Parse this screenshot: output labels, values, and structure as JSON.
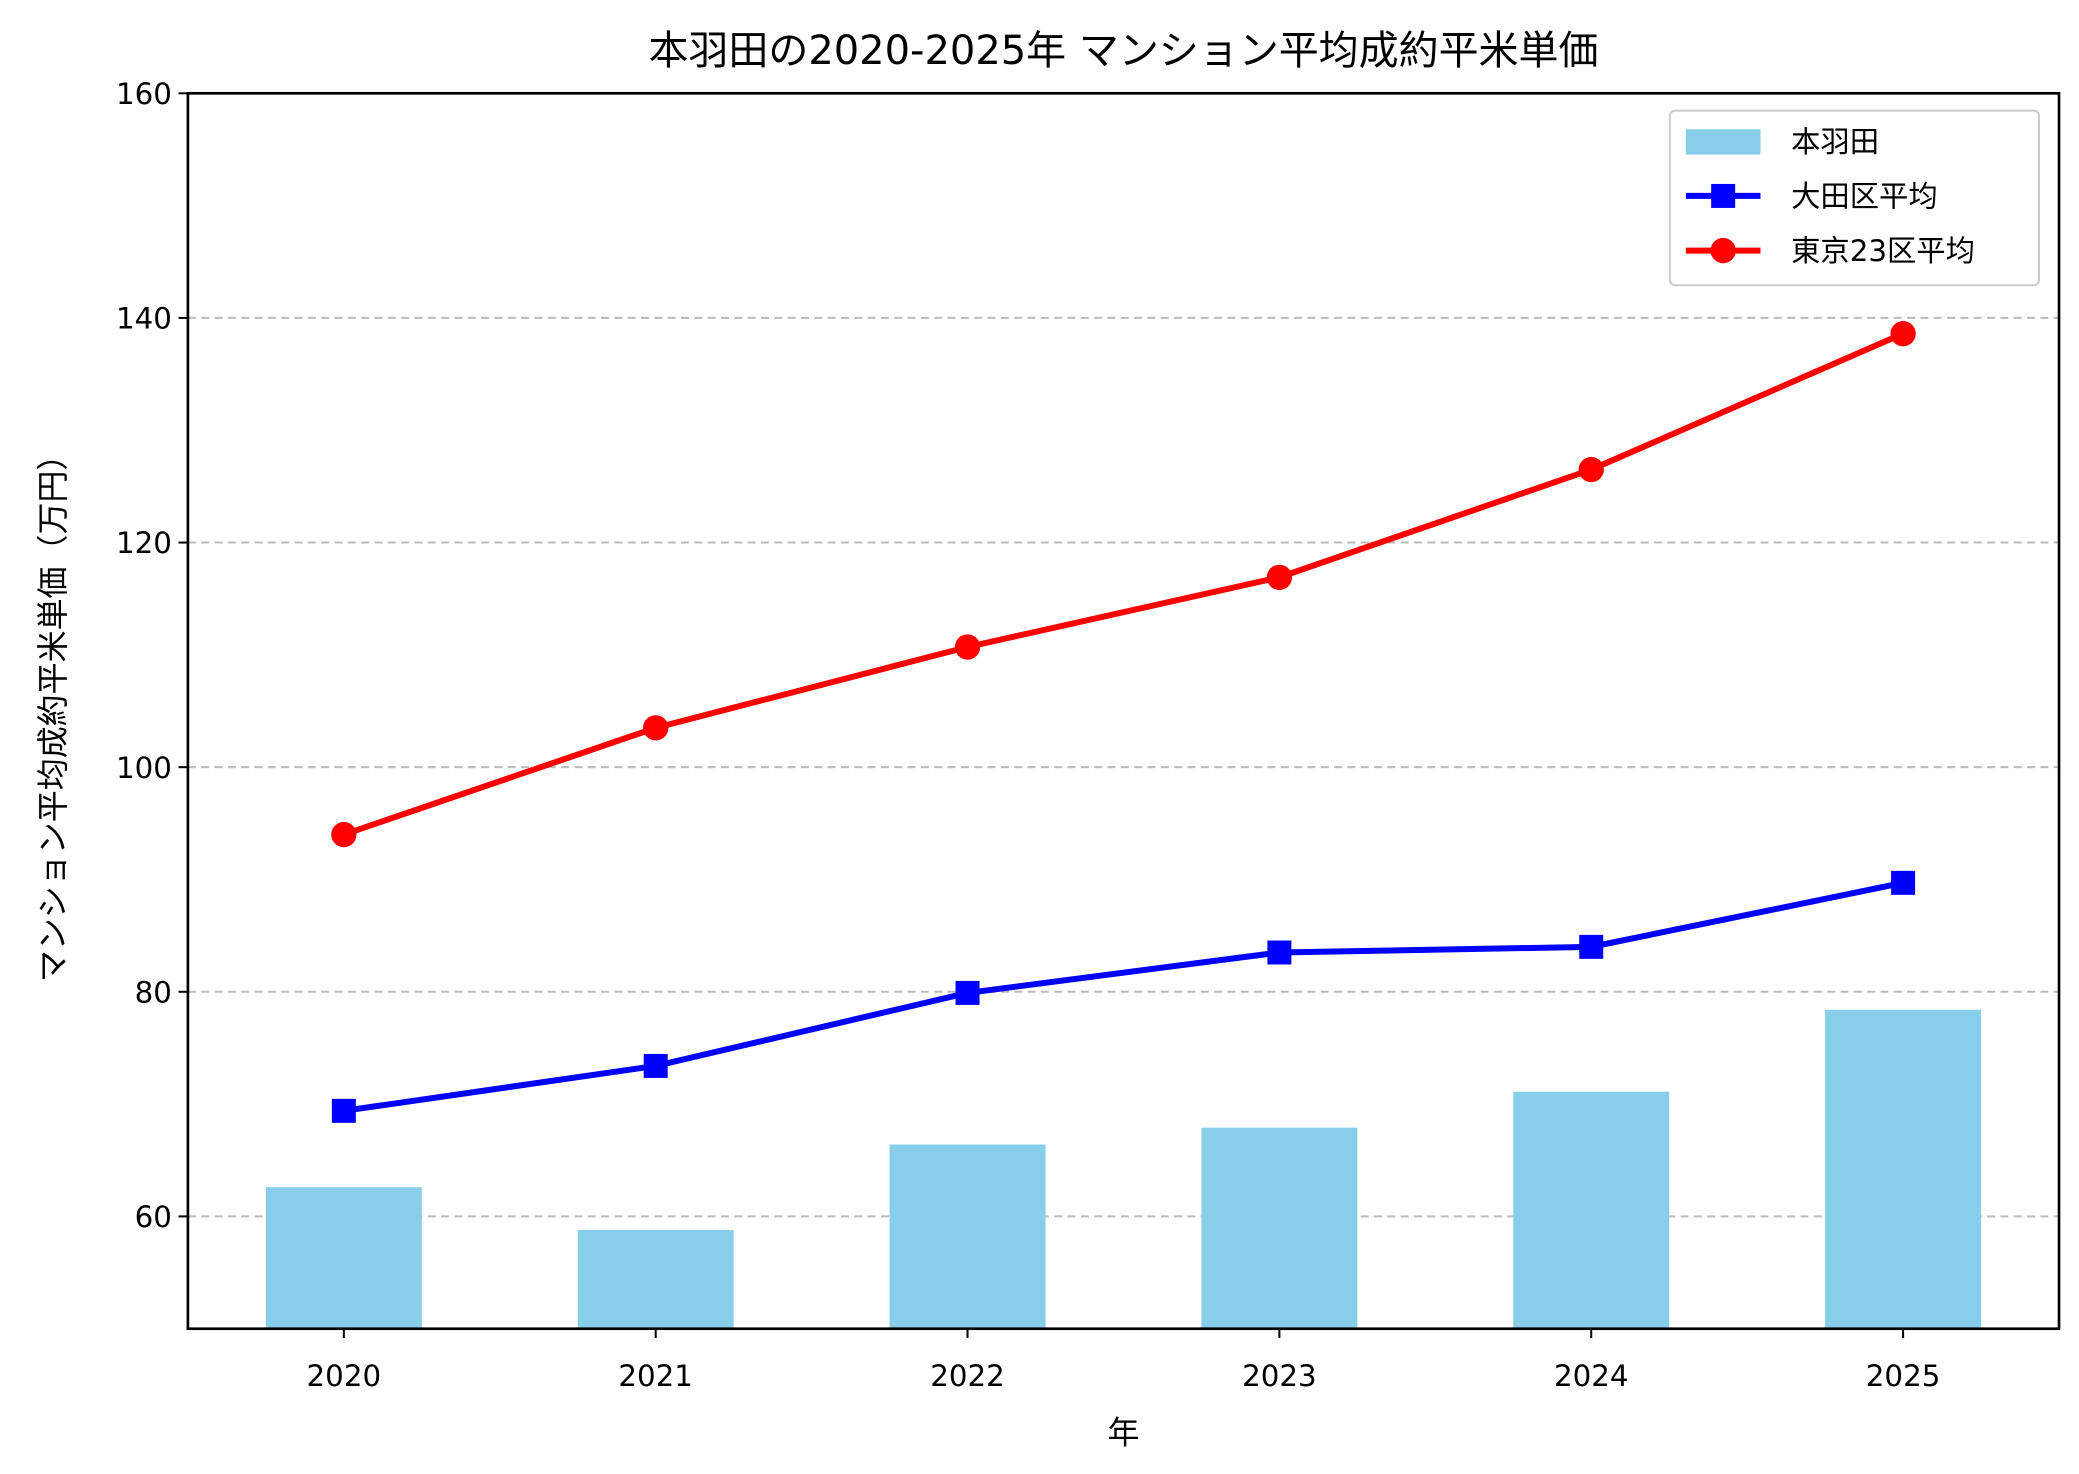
{
  "chart_data": {
    "type": "bar+line",
    "title": "本羽田の2020-2025年 マンション平均成約平米単価",
    "xlabel": "年",
    "ylabel": "マンション平均成約平米単価（万円）",
    "categories": [
      "2020",
      "2021",
      "2022",
      "2023",
      "2024",
      "2025"
    ],
    "ylim": [
      50,
      160
    ],
    "yticks": [
      60,
      80,
      100,
      120,
      140,
      160
    ],
    "grid": "y dashed",
    "legend_placement": "top-right",
    "series": [
      {
        "name": "本羽田",
        "kind": "bar",
        "color": "#87CEEB",
        "values": [
          62.6,
          58.8,
          66.4,
          67.9,
          71.1,
          78.4
        ]
      },
      {
        "name": "大田区平均",
        "kind": "line",
        "marker": "square",
        "color": "#0000FF",
        "values": [
          69.4,
          73.4,
          79.9,
          83.5,
          84.0,
          89.7
        ]
      },
      {
        "name": "東京23区平均",
        "kind": "line",
        "marker": "circle",
        "color": "#FF0000",
        "values": [
          94.0,
          103.5,
          110.7,
          116.9,
          126.5,
          138.6
        ]
      }
    ]
  }
}
